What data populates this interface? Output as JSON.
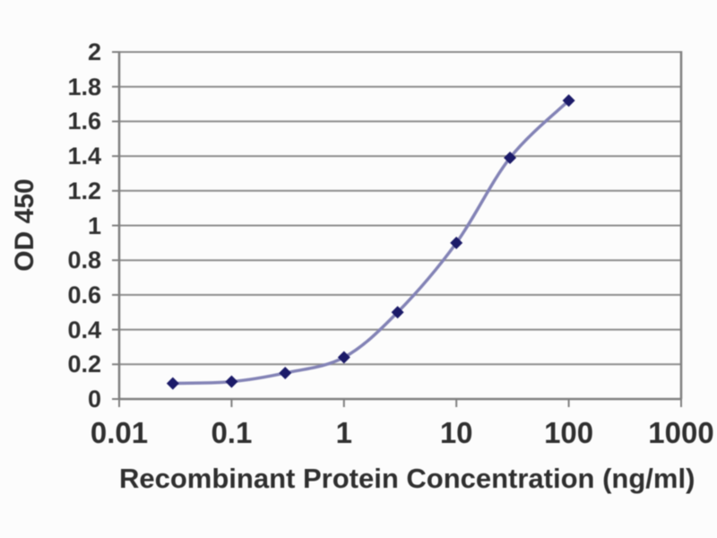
{
  "chart_data": {
    "type": "line",
    "title": "",
    "xlabel": "Recombinant Protein Concentration (ng/ml)",
    "ylabel": "OD 450",
    "x_scale": "log",
    "xlim": [
      0.01,
      1000
    ],
    "ylim": [
      0,
      2
    ],
    "x_tick_labels": [
      "0.01",
      "0.1",
      "1",
      "10",
      "100",
      "1000"
    ],
    "x_tick_values": [
      0.01,
      0.1,
      1,
      10,
      100,
      1000
    ],
    "y_tick_labels": [
      "0",
      "0.2",
      "0.4",
      "0.6",
      "0.8",
      "1",
      "1.2",
      "1.4",
      "1.6",
      "1.8",
      "2"
    ],
    "y_tick_values": [
      0,
      0.2,
      0.4,
      0.6,
      0.8,
      1,
      1.2,
      1.4,
      1.6,
      1.8,
      2
    ],
    "grid": "horizontal",
    "legend": "none",
    "marker": "diamond",
    "series": [
      {
        "name": "OD 450",
        "x": [
          0.03,
          0.1,
          0.3,
          1,
          3,
          10,
          30,
          100
        ],
        "y": [
          0.09,
          0.1,
          0.15,
          0.24,
          0.5,
          0.9,
          1.39,
          1.72
        ]
      }
    ],
    "colors": {
      "marker": "#1c1b69",
      "line": "#8383b6",
      "grid": "#8c8c8c",
      "axis": "#7f7f7f",
      "text": "#2f2f2f",
      "background": "#fcfcfc"
    }
  }
}
